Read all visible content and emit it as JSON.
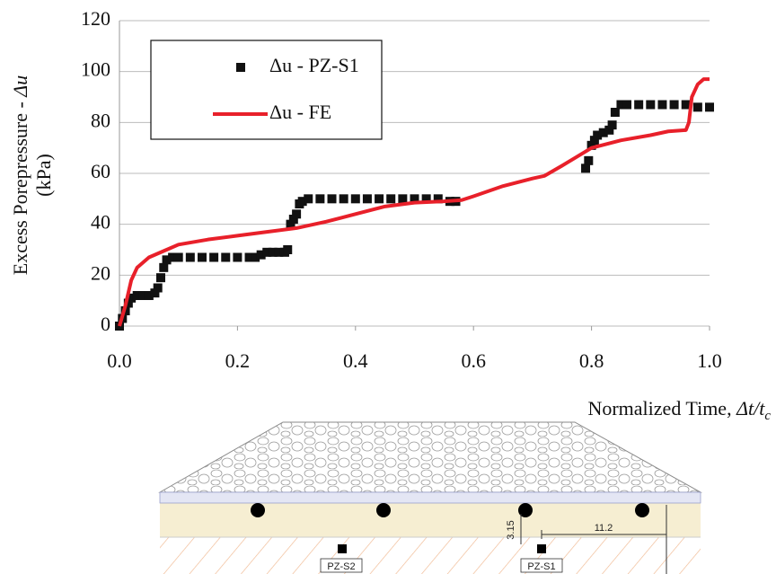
{
  "chart_data": {
    "type": "line",
    "y_label_parts": [
      "Excess Porepressure - ",
      "Δu"
    ],
    "y_label_unit": "(kPa)",
    "x_label_parts": [
      "Normalized Time, ",
      "Δt/t",
      "c"
    ],
    "xlim": [
      0,
      1
    ],
    "xticks": [
      {
        "value": 0,
        "label": "0.0"
      },
      0.2,
      0.4,
      0.6,
      0.8,
      {
        "value": 1,
        "label": "1.0"
      }
    ],
    "ylim": [
      0,
      120
    ],
    "yticks": [
      0,
      20,
      40,
      60,
      80,
      100,
      120
    ],
    "grid": true,
    "legend": "upper left",
    "series": [
      {
        "name": "Δu - PZ-S1",
        "type": "scatter",
        "color": "#111111",
        "x": [
          0,
          0.005,
          0.01,
          0.015,
          0.02,
          0.03,
          0.04,
          0.05,
          0.06,
          0.065,
          0.07,
          0.075,
          0.08,
          0.09,
          0.1,
          0.12,
          0.14,
          0.16,
          0.18,
          0.2,
          0.22,
          0.23,
          0.24,
          0.25,
          0.26,
          0.27,
          0.28,
          0.285,
          0.29,
          0.295,
          0.3,
          0.305,
          0.31,
          0.32,
          0.34,
          0.36,
          0.38,
          0.4,
          0.42,
          0.44,
          0.46,
          0.48,
          0.5,
          0.52,
          0.54,
          0.56,
          0.57,
          0.79,
          0.795,
          0.8,
          0.805,
          0.81,
          0.82,
          0.83,
          0.835,
          0.84,
          0.85,
          0.86,
          0.88,
          0.9,
          0.92,
          0.94,
          0.96,
          0.98,
          1.0
        ],
        "values": [
          0,
          3,
          6,
          9,
          11,
          12,
          12,
          12,
          13,
          15,
          19,
          23,
          26,
          27,
          27,
          27,
          27,
          27,
          27,
          27,
          27,
          27,
          28,
          29,
          29,
          29,
          29,
          30,
          40,
          42,
          44,
          48,
          49,
          50,
          50,
          50,
          50,
          50,
          50,
          50,
          50,
          50,
          50,
          50,
          50,
          49,
          49,
          62,
          65,
          71,
          73,
          75,
          76,
          77,
          79,
          84,
          87,
          87,
          87,
          87,
          87,
          87,
          87,
          86,
          86
        ]
      },
      {
        "name": "Δu - FE",
        "type": "line",
        "color": "#e8202a",
        "x": [
          0,
          0.01,
          0.02,
          0.03,
          0.05,
          0.08,
          0.1,
          0.15,
          0.2,
          0.25,
          0.3,
          0.35,
          0.4,
          0.45,
          0.5,
          0.55,
          0.58,
          0.6,
          0.65,
          0.7,
          0.72,
          0.75,
          0.8,
          0.85,
          0.9,
          0.93,
          0.96,
          0.965,
          0.97,
          0.98,
          0.99,
          1.0
        ],
        "values": [
          0,
          8,
          18,
          23,
          27,
          30,
          32,
          34,
          35.5,
          37,
          38.5,
          41,
          44,
          47,
          48.5,
          49,
          49.5,
          51,
          55,
          58,
          59,
          63,
          70,
          73,
          75,
          76.5,
          77,
          80,
          90,
          95,
          97,
          97
        ]
      }
    ]
  },
  "diagram": {
    "dim_vertical": "3.15",
    "dim_horizontal": "11.2",
    "piezometers": [
      "PZ-S2",
      "PZ-S1"
    ]
  }
}
